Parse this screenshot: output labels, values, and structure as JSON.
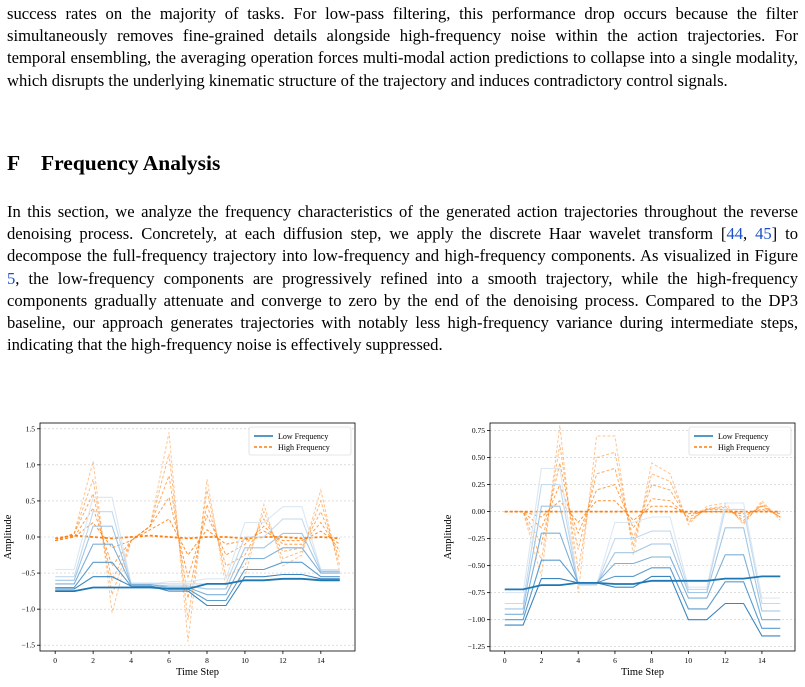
{
  "body_text": {
    "paragraph_1": "success rates on the majority of tasks. For low-pass filtering, this performance drop occurs because the filter simultaneously removes fine-grained details alongside high-frequency noise within the action trajectories. For temporal ensembling, the averaging operation forces multi-modal action predictions to collapse into a single modality, which disrupts the underlying kinematic structure of the trajectory and induces contradictory control signals.",
    "section_number": "F",
    "section_title": "Frequency Analysis",
    "paragraph_2_a": "In this section, we analyze the frequency characteristics of the generated action trajectories throughout the reverse denoising process. Concretely, at each diffusion step, we apply the discrete Haar wavelet transform [",
    "cite_44": "44",
    "cite_sep": ", ",
    "cite_45": "45",
    "paragraph_2_b": "] to decompose the full-frequency trajectory into low-frequency and high-frequency components. As visualized in Figure ",
    "fig_ref": "5",
    "paragraph_2_c": ", the low-frequency components are progressively refined into a smooth trajectory, while the high-frequency components gradually attenuate and converge to zero by the end of the denoising process. Compared to the DP3 baseline, our approach generates trajectories with notably less high-frequency variance during intermediate steps, indicating that the high-frequency noise is effectively suppressed."
  },
  "colors": {
    "low": "#1f77b4",
    "high": "#ff7f0e",
    "cite": "#1a4fc9"
  },
  "chart_data": [
    {
      "type": "line",
      "xlabel": "Time Step",
      "ylabel": "Amplitude",
      "xlim": [
        -0.8,
        15.8
      ],
      "ylim": [
        -1.58,
        1.58
      ],
      "xticks": [
        0,
        2,
        4,
        6,
        8,
        10,
        12,
        14
      ],
      "yticks": [
        -1.5,
        -1.0,
        -0.5,
        0.0,
        0.5,
        1.0,
        1.5
      ],
      "ytick_labels": [
        "−1.5",
        "−1.0",
        "−0.5",
        "0.0",
        "0.5",
        "1.0",
        "1.5"
      ],
      "grid": "horizontal",
      "legend": "top-right",
      "legend_entries": [
        "Low Frequency",
        "High Frequency"
      ],
      "x": [
        0,
        1,
        2,
        3,
        4,
        5,
        6,
        7,
        8,
        9,
        10,
        11,
        12,
        13,
        14,
        15
      ],
      "series": [
        {
          "name": "Low Frequency",
          "group": "low",
          "step": "final",
          "values": [
            -0.75,
            -0.75,
            -0.7,
            -0.7,
            -0.7,
            -0.7,
            -0.72,
            -0.72,
            -0.65,
            -0.65,
            -0.6,
            -0.6,
            -0.58,
            -0.58,
            -0.6,
            -0.6
          ]
        },
        {
          "name": "",
          "group": "low",
          "step": "intermediate",
          "values": [
            -0.72,
            -0.72,
            -0.55,
            -0.55,
            -0.68,
            -0.68,
            -0.75,
            -0.75,
            -0.95,
            -0.95,
            -0.55,
            -0.55,
            -0.52,
            -0.52,
            -0.58,
            -0.58
          ]
        },
        {
          "name": "",
          "group": "low",
          "step": "intermediate",
          "values": [
            -0.7,
            -0.7,
            -0.35,
            -0.35,
            -0.68,
            -0.68,
            -0.72,
            -0.72,
            -0.88,
            -0.88,
            -0.45,
            -0.45,
            -0.35,
            -0.35,
            -0.55,
            -0.55
          ]
        },
        {
          "name": "",
          "group": "low",
          "step": "intermediate",
          "values": [
            -0.65,
            -0.65,
            -0.1,
            -0.1,
            -0.66,
            -0.66,
            -0.7,
            -0.7,
            -0.8,
            -0.8,
            -0.3,
            -0.3,
            -0.15,
            -0.15,
            -0.5,
            -0.5
          ]
        },
        {
          "name": "",
          "group": "low",
          "step": "intermediate",
          "values": [
            -0.6,
            -0.6,
            0.15,
            0.15,
            -0.66,
            -0.66,
            -0.68,
            -0.68,
            -0.72,
            -0.72,
            -0.15,
            -0.15,
            0.05,
            0.05,
            -0.48,
            -0.48
          ]
        },
        {
          "name": "",
          "group": "low",
          "step": "intermediate",
          "values": [
            -0.55,
            -0.55,
            0.35,
            0.35,
            -0.64,
            -0.64,
            -0.65,
            -0.65,
            -0.65,
            -0.65,
            0.0,
            0.0,
            0.25,
            0.25,
            -0.46,
            -0.46
          ]
        },
        {
          "name": "",
          "group": "low",
          "step": "initial",
          "values": [
            -0.45,
            -0.45,
            0.55,
            0.55,
            -0.65,
            -0.65,
            -0.62,
            -0.62,
            -0.58,
            -0.58,
            0.2,
            0.2,
            0.42,
            0.42,
            -0.45,
            -0.45
          ]
        },
        {
          "name": "High Frequency",
          "group": "high",
          "step": "final",
          "values": [
            -0.02,
            0.02,
            0.0,
            -0.02,
            0.0,
            0.02,
            0.0,
            -0.02,
            0.0,
            0.0,
            -0.02,
            0.0,
            0.0,
            -0.02,
            0.0,
            -0.02
          ]
        },
        {
          "name": "",
          "group": "high",
          "step": "intermediate",
          "values": [
            -0.05,
            0.0,
            0.2,
            -0.15,
            -0.05,
            0.1,
            0.25,
            -0.25,
            0.1,
            -0.1,
            -0.05,
            0.08,
            -0.05,
            -0.05,
            0.08,
            -0.1
          ]
        },
        {
          "name": "",
          "group": "high",
          "step": "intermediate",
          "values": [
            -0.05,
            0.0,
            0.4,
            -0.4,
            -0.05,
            0.15,
            0.55,
            -0.55,
            0.3,
            -0.25,
            -0.1,
            0.15,
            -0.1,
            -0.1,
            0.2,
            -0.2
          ]
        },
        {
          "name": "",
          "group": "high",
          "step": "intermediate",
          "values": [
            -0.05,
            0.05,
            0.6,
            -0.6,
            -0.05,
            0.15,
            0.85,
            -0.85,
            0.45,
            -0.4,
            -0.25,
            0.25,
            -0.2,
            -0.15,
            0.35,
            -0.3
          ]
        },
        {
          "name": "",
          "group": "high",
          "step": "intermediate",
          "values": [
            -0.05,
            0.05,
            0.8,
            -0.8,
            -0.05,
            0.15,
            1.15,
            -1.15,
            0.65,
            -0.55,
            -0.4,
            0.35,
            -0.3,
            -0.2,
            0.5,
            -0.4
          ]
        },
        {
          "name": "",
          "group": "high",
          "step": "initial",
          "values": [
            -0.05,
            0.05,
            1.05,
            -1.05,
            -0.05,
            0.15,
            1.45,
            -1.45,
            0.8,
            -0.7,
            -0.55,
            0.45,
            -0.4,
            -0.25,
            0.65,
            -0.5
          ]
        }
      ]
    },
    {
      "type": "line",
      "xlabel": "Time Step",
      "ylabel": "Amplitude",
      "xlim": [
        -0.8,
        15.8
      ],
      "ylim": [
        -1.29,
        0.82
      ],
      "xticks": [
        0,
        2,
        4,
        6,
        8,
        10,
        12,
        14
      ],
      "yticks": [
        -1.25,
        -1.0,
        -0.75,
        -0.5,
        -0.25,
        0.0,
        0.25,
        0.5,
        0.75
      ],
      "ytick_labels": [
        "−1.25",
        "−1.00",
        "−0.75",
        "−0.50",
        "−0.25",
        "0.00",
        "0.25",
        "0.50",
        "0.75"
      ],
      "grid": "horizontal",
      "legend": "top-right",
      "legend_entries": [
        "Low Frequency",
        "High Frequency"
      ],
      "x": [
        0,
        1,
        2,
        3,
        4,
        5,
        6,
        7,
        8,
        9,
        10,
        11,
        12,
        13,
        14,
        15
      ],
      "series": [
        {
          "name": "Low Frequency",
          "group": "low",
          "step": "final",
          "values": [
            -0.72,
            -0.72,
            -0.68,
            -0.68,
            -0.66,
            -0.66,
            -0.67,
            -0.67,
            -0.64,
            -0.64,
            -0.64,
            -0.64,
            -0.62,
            -0.62,
            -0.6,
            -0.6
          ]
        },
        {
          "name": "",
          "group": "low",
          "step": "intermediate",
          "values": [
            -1.05,
            -1.05,
            -0.62,
            -0.62,
            -0.66,
            -0.66,
            -0.7,
            -0.7,
            -0.6,
            -0.6,
            -1.0,
            -1.0,
            -0.85,
            -0.85,
            -1.15,
            -1.15
          ]
        },
        {
          "name": "",
          "group": "low",
          "step": "intermediate",
          "values": [
            -1.0,
            -1.0,
            -0.45,
            -0.45,
            -0.66,
            -0.66,
            -0.6,
            -0.6,
            -0.52,
            -0.52,
            -0.9,
            -0.9,
            -0.65,
            -0.65,
            -1.08,
            -1.08
          ]
        },
        {
          "name": "",
          "group": "low",
          "step": "intermediate",
          "values": [
            -0.95,
            -0.95,
            -0.2,
            -0.2,
            -0.66,
            -0.66,
            -0.48,
            -0.48,
            -0.42,
            -0.42,
            -0.8,
            -0.8,
            -0.4,
            -0.4,
            -1.0,
            -1.0
          ]
        },
        {
          "name": "",
          "group": "low",
          "step": "intermediate",
          "values": [
            -0.9,
            -0.9,
            0.05,
            0.05,
            -0.67,
            -0.67,
            -0.38,
            -0.38,
            -0.3,
            -0.3,
            -0.75,
            -0.75,
            -0.15,
            -0.15,
            -0.92,
            -0.92
          ]
        },
        {
          "name": "",
          "group": "low",
          "step": "intermediate",
          "values": [
            -0.85,
            -0.85,
            0.25,
            0.25,
            -0.68,
            -0.68,
            -0.25,
            -0.25,
            -0.18,
            -0.18,
            -0.72,
            -0.72,
            0.02,
            0.02,
            -0.85,
            -0.85
          ]
        },
        {
          "name": "",
          "group": "low",
          "step": "initial",
          "values": [
            -0.75,
            -0.75,
            0.4,
            0.4,
            -0.68,
            -0.68,
            -0.1,
            -0.1,
            -0.05,
            -0.05,
            -0.7,
            -0.7,
            0.08,
            0.08,
            -0.8,
            -0.8
          ]
        },
        {
          "name": "High Frequency",
          "group": "high",
          "step": "final",
          "values": [
            0.0,
            0.0,
            0.0,
            0.0,
            0.0,
            0.0,
            0.0,
            0.0,
            0.0,
            0.0,
            0.0,
            0.0,
            0.0,
            0.0,
            0.0,
            0.0
          ]
        },
        {
          "name": "",
          "group": "high",
          "step": "intermediate",
          "values": [
            0.0,
            0.0,
            -0.05,
            0.1,
            -0.1,
            0.1,
            0.1,
            -0.08,
            0.05,
            0.05,
            -0.02,
            0.0,
            0.0,
            -0.02,
            0.02,
            -0.02
          ]
        },
        {
          "name": "",
          "group": "high",
          "step": "intermediate",
          "values": [
            0.0,
            0.0,
            -0.15,
            0.25,
            -0.2,
            0.2,
            0.25,
            -0.15,
            0.12,
            0.1,
            -0.05,
            0.02,
            0.02,
            -0.05,
            0.05,
            -0.05
          ]
        },
        {
          "name": "",
          "group": "high",
          "step": "intermediate",
          "values": [
            0.0,
            0.0,
            -0.3,
            0.45,
            -0.35,
            0.35,
            0.4,
            -0.25,
            0.25,
            0.2,
            -0.08,
            0.02,
            0.04,
            -0.08,
            0.06,
            -0.05
          ]
        },
        {
          "name": "",
          "group": "high",
          "step": "intermediate",
          "values": [
            0.0,
            0.0,
            -0.45,
            0.62,
            -0.55,
            0.5,
            0.55,
            -0.32,
            0.35,
            0.28,
            -0.1,
            0.03,
            0.05,
            -0.1,
            0.08,
            -0.06
          ]
        },
        {
          "name": "",
          "group": "high",
          "step": "initial",
          "values": [
            0.0,
            0.0,
            -0.6,
            0.8,
            -0.75,
            0.7,
            0.7,
            -0.4,
            0.45,
            0.35,
            -0.12,
            0.05,
            0.08,
            -0.12,
            0.1,
            -0.08
          ]
        }
      ]
    }
  ]
}
